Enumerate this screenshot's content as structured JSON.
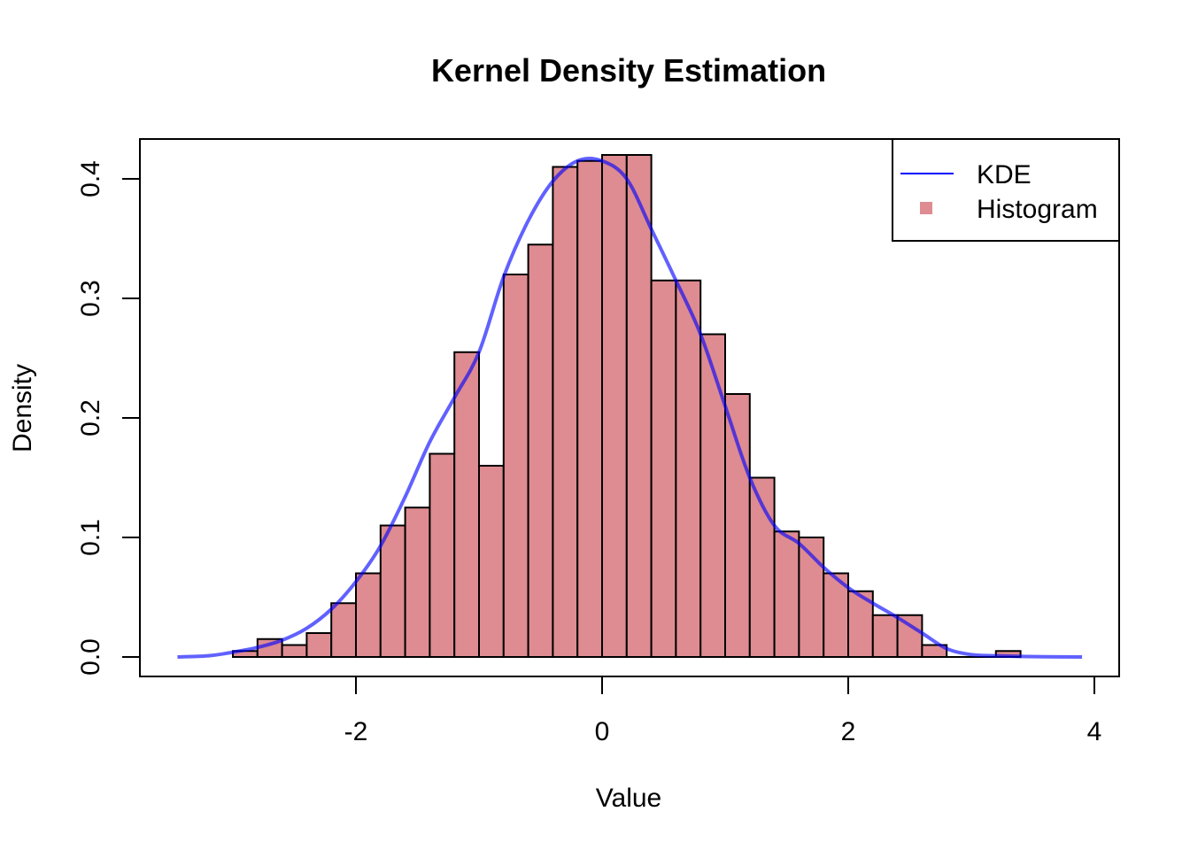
{
  "chart_data": {
    "type": "bar",
    "title": "Kernel Density Estimation",
    "xlabel": "Value",
    "ylabel": "Density",
    "xlim": [
      -3.45,
      4.0
    ],
    "ylim": [
      -0.0155,
      0.435
    ],
    "x_ticks": [
      -2,
      0,
      2,
      4
    ],
    "x_tick_labels": [
      "-2",
      "0",
      "2",
      "4"
    ],
    "y_ticks": [
      0.0,
      0.1,
      0.2,
      0.3,
      0.4
    ],
    "y_tick_labels": [
      "0.0",
      "0.1",
      "0.2",
      "0.3",
      "0.4"
    ],
    "histogram": {
      "name": "Histogram",
      "color": "#DE8C91",
      "bin_width": 0.2,
      "bin_starts": [
        -3.0,
        -2.8,
        -2.6,
        -2.4,
        -2.2,
        -2.0,
        -1.8,
        -1.6,
        -1.4,
        -1.2,
        -1.0,
        -0.8,
        -0.6,
        -0.4,
        -0.2,
        0.0,
        0.2,
        0.4,
        0.6,
        0.8,
        1.0,
        1.2,
        1.4,
        1.6,
        1.8,
        2.0,
        2.2,
        2.4,
        2.6,
        2.8,
        3.0,
        3.2
      ],
      "densities": [
        0.005,
        0.015,
        0.01,
        0.02,
        0.045,
        0.07,
        0.11,
        0.125,
        0.17,
        0.255,
        0.16,
        0.32,
        0.345,
        0.41,
        0.415,
        0.42,
        0.42,
        0.315,
        0.315,
        0.27,
        0.22,
        0.15,
        0.105,
        0.1,
        0.07,
        0.055,
        0.035,
        0.035,
        0.01,
        0.0,
        0.0,
        0.005
      ]
    },
    "kde": {
      "name": "KDE",
      "color": "#0000FF",
      "x": [
        -3.45,
        -3.2,
        -3.0,
        -2.8,
        -2.6,
        -2.4,
        -2.2,
        -2.0,
        -1.8,
        -1.6,
        -1.4,
        -1.2,
        -1.0,
        -0.8,
        -0.6,
        -0.4,
        -0.2,
        0.0,
        0.2,
        0.4,
        0.6,
        0.8,
        1.0,
        1.2,
        1.4,
        1.6,
        1.8,
        2.0,
        2.2,
        2.4,
        2.6,
        2.8,
        3.0,
        3.2,
        3.4,
        3.6,
        3.9
      ],
      "y": [
        0.0,
        0.001,
        0.004,
        0.008,
        0.014,
        0.024,
        0.04,
        0.063,
        0.093,
        0.134,
        0.18,
        0.217,
        0.255,
        0.318,
        0.365,
        0.398,
        0.415,
        0.415,
        0.4,
        0.358,
        0.315,
        0.27,
        0.21,
        0.15,
        0.11,
        0.095,
        0.075,
        0.058,
        0.045,
        0.033,
        0.02,
        0.007,
        0.002,
        0.001,
        0.0005,
        0.0002,
        0.0
      ]
    },
    "legend": {
      "position": "top-right",
      "entries": [
        {
          "label": "KDE",
          "kind": "line",
          "color": "#0000FF"
        },
        {
          "label": "Histogram",
          "kind": "square",
          "color": "#DE8C91"
        }
      ]
    }
  }
}
